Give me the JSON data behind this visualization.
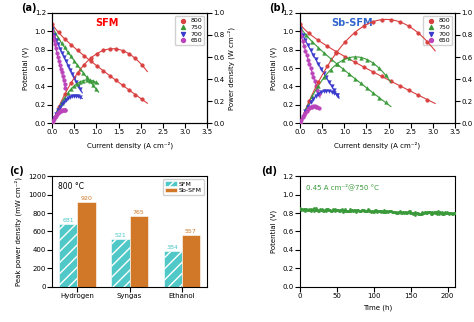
{
  "panel_a_label": "SFM",
  "panel_b_label": "Sb-SFM",
  "temps": [
    800,
    750,
    700,
    650
  ],
  "temp_colors": [
    "#d94040",
    "#3a9a3a",
    "#3a3acc",
    "#bb44bb"
  ],
  "temp_markers": [
    "o",
    "^",
    "v",
    "o"
  ],
  "xlim": [
    0,
    3.5
  ],
  "ylim_V": [
    0.0,
    1.2
  ],
  "ylim_P": [
    0.0,
    1.0
  ],
  "sfm_params": [
    {
      "max_cd": 2.15,
      "ocv": 1.08,
      "r": 0.32,
      "peak_P": 0.68
    },
    {
      "max_cd": 1.05,
      "ocv": 1.05,
      "r": 0.55,
      "peak_P": 0.52
    },
    {
      "max_cd": 0.68,
      "ocv": 1.02,
      "r": 0.85,
      "peak_P": 0.33
    },
    {
      "max_cd": 0.32,
      "ocv": 1.0,
      "r": 1.8,
      "peak_P": 0.14
    }
  ],
  "sbsfm_params": [
    {
      "max_cd": 3.05,
      "ocv": 1.08,
      "r": 0.22,
      "peak_P": 0.92
    },
    {
      "max_cd": 2.05,
      "ocv": 1.05,
      "r": 0.34,
      "peak_P": 0.68
    },
    {
      "max_cd": 0.88,
      "ocv": 1.03,
      "r": 0.72,
      "peak_P": 0.45
    },
    {
      "max_cd": 0.45,
      "ocv": 1.0,
      "r": 1.4,
      "peak_P": 0.22
    }
  ],
  "panel_c_categories": [
    "Hydrogen",
    "Syngas",
    "Ethanol"
  ],
  "panel_c_sfm": [
    681,
    521,
    384
  ],
  "panel_c_sbsfm": [
    920,
    765,
    557
  ],
  "panel_c_color_sfm": "#50c8c8",
  "panel_c_color_sbsfm": "#d07828",
  "panel_c_ylim": [
    0,
    1200
  ],
  "panel_c_yticks": [
    0,
    200,
    400,
    600,
    800,
    1000,
    1200
  ],
  "panel_d_annotation": "0.45 A cm⁻²@750 °C",
  "panel_d_xlim": [
    0,
    210
  ],
  "panel_d_ylim": [
    0.0,
    1.2
  ],
  "panel_d_yticks": [
    0.0,
    0.2,
    0.4,
    0.6,
    0.8,
    1.0,
    1.2
  ],
  "panel_d_color": "#3a9a3a",
  "xlabel_ab": "Current density (A cm⁻²)",
  "ylabel_V": "Potential (V)",
  "ylabel_P": "Power density (W cm⁻²)",
  "ylabel_c": "Peak power density (mW cm⁻²)",
  "xlabel_d": "Time (h)",
  "ylabel_d": "Potential (V)"
}
